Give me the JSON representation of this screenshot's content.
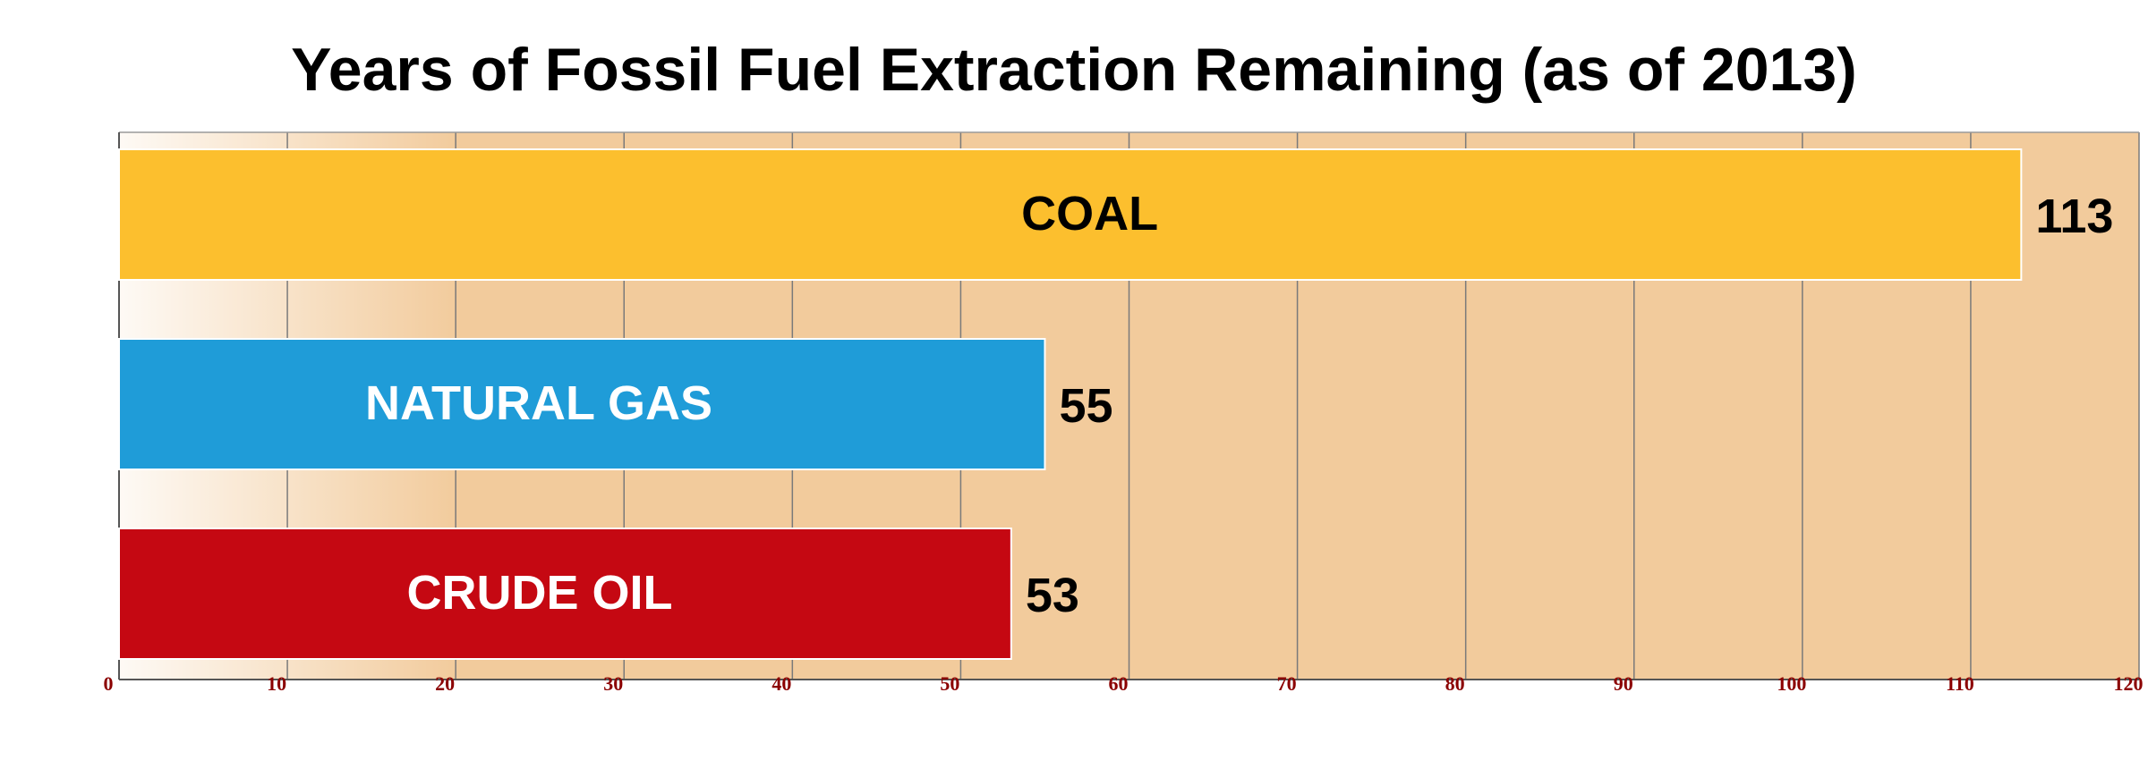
{
  "chart_data": {
    "type": "bar",
    "orientation": "horizontal",
    "title": "Years of Fossil Fuel Extraction Remaining (as of 2013)",
    "xlabel": "",
    "ylabel": "",
    "categories": [
      "COAL",
      "NATURAL GAS",
      "CRUDE OIL"
    ],
    "values": [
      113,
      55,
      53
    ],
    "value_labels": [
      "113",
      "55",
      "53"
    ],
    "colors": [
      "#FCBF2E",
      "#1F9CD8",
      "#C50812"
    ],
    "category_label_colors": [
      "#000000",
      "#FFFFFF",
      "#FFFFFF"
    ],
    "xlim": [
      0,
      120
    ],
    "ticks": [
      0,
      10,
      20,
      30,
      40,
      50,
      60,
      70,
      80,
      90,
      100,
      110,
      120
    ],
    "tick_labels": [
      "0",
      "10",
      "20",
      "30",
      "40",
      "50",
      "60",
      "70",
      "80",
      "90",
      "100",
      "110",
      "120"
    ],
    "tick_label_color": "#8B0000",
    "plot_background": "#F2CB9C",
    "grid": true,
    "legend": "none"
  }
}
